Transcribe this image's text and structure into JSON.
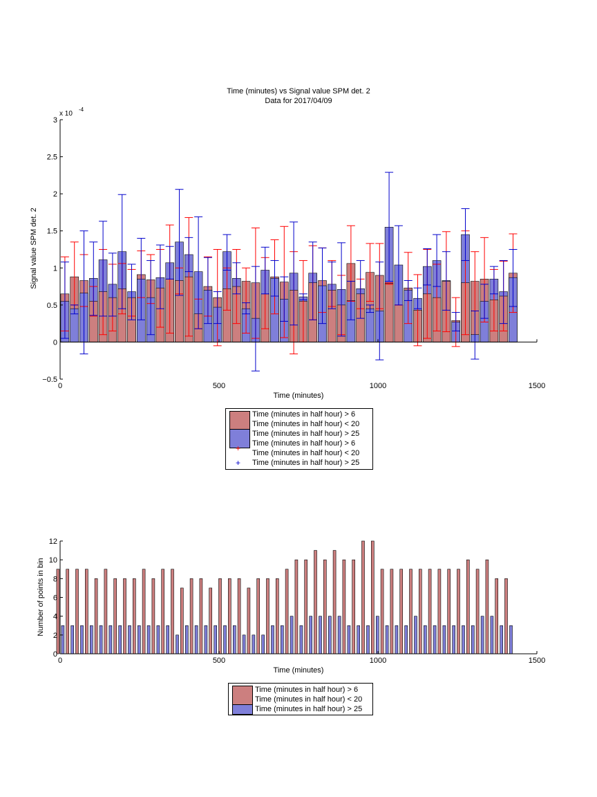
{
  "chart_data": [
    {
      "type": "bar",
      "title": "Time (minutes) vs Signal value SPM det. 2",
      "subtitle": "Data for 2017/04/09",
      "xlabel": "Time (minutes)",
      "ylabel": "Signal value SPM det. 2",
      "exponent_label": "x 10",
      "exponent_power": "-4",
      "xlim": [
        0,
        1500
      ],
      "ylim": [
        -0.5,
        3
      ],
      "y_scale_factor": 0.0001,
      "x_ticks": [
        "0",
        "500",
        "1000",
        "1500"
      ],
      "y_ticks": [
        "−0.5",
        "0",
        "0.5",
        "1",
        "1.5",
        "2",
        "2.5",
        "3"
      ],
      "y_tick_values": [
        -0.5,
        0,
        0.5,
        1,
        1.5,
        2,
        2.5,
        3
      ],
      "x_tick_values": [
        0,
        500,
        1000,
        1500
      ],
      "x": [
        15,
        45,
        75,
        105,
        135,
        165,
        195,
        225,
        255,
        285,
        315,
        345,
        375,
        405,
        435,
        465,
        495,
        525,
        555,
        585,
        615,
        645,
        675,
        705,
        735,
        765,
        795,
        825,
        855,
        885,
        915,
        945,
        975,
        1005,
        1035,
        1065,
        1095,
        1125,
        1155,
        1185,
        1215,
        1245,
        1275,
        1305,
        1335,
        1365,
        1395,
        1425
      ],
      "series": [
        {
          "name": "Time (minutes in half hour) > 6\nTime (minutes in half hour) < 20",
          "color": "#cc7f7f",
          "values": [
            0.65,
            0.88,
            0.83,
            0.55,
            0.68,
            0.6,
            0.72,
            0.6,
            0.91,
            0.84,
            0.73,
            0.85,
            0.83,
            0.88,
            0.38,
            0.75,
            0.6,
            0.72,
            0.75,
            0.82,
            0.8,
            0.65,
            0.88,
            0.81,
            0.7,
            0.55,
            0.8,
            0.83,
            0.7,
            0.5,
            1.06,
            0.65,
            0.94,
            0.9,
            0.79,
            0.5,
            0.73,
            0.43,
            0.65,
            0.6,
            0.82,
            0.29,
            0.8,
            0.82,
            0.85,
            0.57,
            0.62,
            0.93
          ],
          "err_low": [
            0.15,
            0.5,
            0.48,
            0.35,
            0.1,
            0.15,
            0.38,
            0.35,
            0.6,
            0.52,
            0.2,
            0.12,
            0.65,
            0.08,
            0.18,
            0.35,
            -0.05,
            0.43,
            0.25,
            0.12,
            0.05,
            0.18,
            0.38,
            0.06,
            -0.16,
            0.0,
            0.3,
            0.4,
            0.48,
            0.1,
            0.55,
            0.45,
            0.55,
            0.45,
            0.8,
            0.5,
            0.25,
            -0.05,
            0.05,
            0.15,
            0.14,
            -0.06,
            0.1,
            0.42,
            0.27,
            0.15,
            0.15,
            0.4
          ],
          "err_high": [
            1.15,
            1.35,
            1.18,
            0.75,
            1.25,
            1.05,
            1.06,
            0.98,
            1.23,
            1.18,
            1.25,
            1.58,
            1.0,
            1.68,
            0.58,
            1.15,
            1.25,
            1.0,
            1.25,
            1.0,
            1.54,
            1.14,
            1.38,
            1.56,
            1.22,
            1.1,
            1.3,
            1.27,
            1.1,
            0.9,
            1.57,
            0.85,
            1.33,
            1.33,
            0.78,
            0.5,
            1.21,
            0.91,
            1.25,
            1.05,
            1.49,
            0.6,
            1.5,
            1.22,
            1.41,
            0.98,
            1.09,
            1.46
          ]
        },
        {
          "name": "Time (minutes in half hour) > 25",
          "color": "#7f7fd9",
          "values": [
            0.55,
            0.45,
            0.66,
            0.86,
            1.11,
            0.78,
            1.22,
            0.68,
            0.85,
            0.6,
            0.87,
            1.07,
            1.35,
            1.18,
            0.95,
            0.7,
            0.47,
            1.22,
            0.86,
            0.45,
            0.32,
            0.97,
            0.86,
            0.58,
            0.93,
            0.61,
            0.93,
            0.76,
            0.78,
            0.71,
            0.56,
            0.72,
            0.45,
            0.42,
            1.55,
            1.04,
            0.7,
            0.59,
            1.02,
            1.1,
            0.83,
            0.27,
            1.45,
            0.1,
            0.55,
            0.85,
            0.68,
            0.87
          ],
          "err_low": [
            0.05,
            0.38,
            -0.16,
            0.36,
            0.35,
            0.35,
            0.45,
            0.3,
            0.3,
            0.1,
            0.45,
            0.85,
            0.63,
            0.95,
            0.18,
            0.25,
            0.25,
            0.97,
            0.65,
            0.38,
            -0.39,
            0.65,
            0.62,
            0.28,
            0.23,
            0.57,
            0.3,
            0.25,
            0.45,
            0.08,
            0.3,
            0.32,
            0.4,
            -0.24,
            0.82,
            0.5,
            0.56,
            0.45,
            0.77,
            0.75,
            0.43,
            0.15,
            1.1,
            -0.23,
            0.32,
            0.65,
            0.25,
            0.48
          ],
          "err_high": [
            1.08,
            0.5,
            1.5,
            1.35,
            1.63,
            1.2,
            1.99,
            1.05,
            1.4,
            1.1,
            1.31,
            1.29,
            2.06,
            1.41,
            1.69,
            1.14,
            0.68,
            1.45,
            1.07,
            0.53,
            1.02,
            1.28,
            1.1,
            0.88,
            1.62,
            0.65,
            1.35,
            1.27,
            1.08,
            1.34,
            0.82,
            1.1,
            0.5,
            1.08,
            2.29,
            1.57,
            0.83,
            0.73,
            1.26,
            1.45,
            1.22,
            0.4,
            1.8,
            0.42,
            0.78,
            1.02,
            1.1,
            1.25
          ]
        }
      ],
      "legend": [
        {
          "kind": "swatch",
          "color": "#cc7f7f",
          "lines": [
            "Time (minutes in half hour) > 6",
            "Time (minutes in half hour) < 20"
          ]
        },
        {
          "kind": "swatch",
          "color": "#7f7fd9",
          "lines": [
            "Time (minutes in half hour) > 25"
          ]
        },
        {
          "kind": "marker",
          "color": "#ff0000",
          "lines": [
            "Time (minutes in half hour) > 6",
            "Time (minutes in half hour) < 20"
          ]
        },
        {
          "kind": "marker",
          "color": "#0000cc",
          "lines": [
            "Time (minutes in half hour) > 25"
          ]
        }
      ]
    },
    {
      "type": "bar",
      "title": "",
      "xlabel": "Time (minutes)",
      "ylabel": "Number of points in bin",
      "xlim": [
        0,
        1500
      ],
      "ylim": [
        0,
        12
      ],
      "x_ticks": [
        "0",
        "500",
        "1000",
        "1500"
      ],
      "x_tick_values": [
        0,
        500,
        1000,
        1500
      ],
      "y_ticks": [
        "0",
        "2",
        "4",
        "6",
        "8",
        "10",
        "12"
      ],
      "y_tick_values": [
        0,
        2,
        4,
        6,
        8,
        10,
        12
      ],
      "x": [
        15,
        45,
        75,
        105,
        135,
        165,
        195,
        225,
        255,
        285,
        315,
        345,
        375,
        405,
        435,
        465,
        495,
        525,
        555,
        585,
        615,
        645,
        675,
        705,
        735,
        765,
        795,
        825,
        855,
        885,
        915,
        945,
        975,
        1005,
        1035,
        1065,
        1095,
        1125,
        1155,
        1185,
        1215,
        1245,
        1275,
        1305,
        1335,
        1365,
        1395,
        1425
      ],
      "series": [
        {
          "name": "Time (minutes in half hour) > 6\nTime (minutes in half hour) < 20",
          "color": "#cc7f7f",
          "values": [
            9,
            9,
            9,
            9,
            8,
            9,
            8,
            8,
            8,
            9,
            8,
            9,
            9,
            7,
            8,
            8,
            7,
            8,
            8,
            8,
            7,
            8,
            8,
            8,
            9,
            10,
            10,
            11,
            10,
            11,
            10,
            10,
            12,
            12,
            9,
            9,
            9,
            9,
            9,
            9,
            9,
            9,
            9,
            10,
            9,
            10,
            8,
            8
          ]
        },
        {
          "name": "Time (minutes in half hour) > 25",
          "color": "#7f7fd9",
          "values": [
            3,
            3,
            3,
            3,
            3,
            3,
            3,
            3,
            3,
            3,
            3,
            3,
            2,
            3,
            3,
            3,
            3,
            3,
            3,
            2,
            2,
            2,
            3,
            3,
            4,
            3,
            4,
            4,
            4,
            4,
            3,
            3,
            3,
            4,
            3,
            3,
            3,
            4,
            3,
            3,
            3,
            3,
            3,
            3,
            4,
            4,
            3,
            3
          ]
        }
      ],
      "legend": [
        {
          "kind": "swatch",
          "color": "#cc7f7f",
          "lines": [
            "Time (minutes in half hour) > 6",
            "Time (minutes in half hour) < 20"
          ]
        },
        {
          "kind": "swatch",
          "color": "#7f7fd9",
          "lines": [
            "Time (minutes in half hour) > 25"
          ]
        }
      ]
    }
  ]
}
